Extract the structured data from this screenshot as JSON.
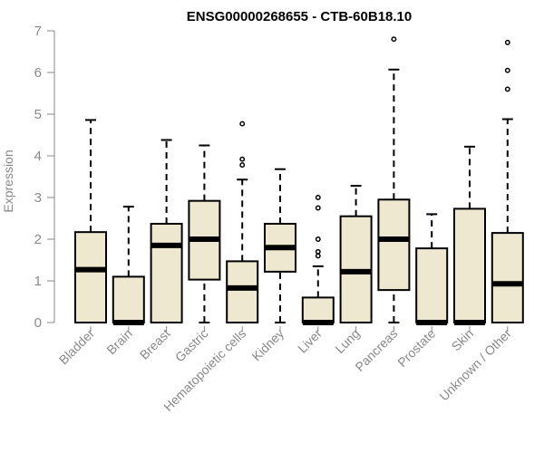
{
  "chart_data": {
    "type": "boxplot",
    "title": "ENSG00000268655 - CTB-60B18.10",
    "ylabel": "Expression",
    "xlabel": "",
    "ylim": [
      0,
      7
    ],
    "yticks": [
      0,
      1,
      2,
      3,
      4,
      5,
      6,
      7
    ],
    "grid": false,
    "box_fill": "#efe8d0",
    "box_stroke": "#000000",
    "categories": [
      "Bladder",
      "Brain",
      "Breast",
      "Gastric",
      "Hematopoietic cells",
      "Kidney",
      "Liver",
      "Lung",
      "Pancreas",
      "Prostate",
      "Skin",
      "Unknown / Other"
    ],
    "boxes": [
      {
        "category": "Bladder",
        "whisker_low": 0,
        "q1": 0,
        "median": 1.27,
        "q3": 2.17,
        "whisker_high": 4.86,
        "outliers": []
      },
      {
        "category": "Brain",
        "whisker_low": 0,
        "q1": 0,
        "median": 0,
        "q3": 1.1,
        "whisker_high": 2.78,
        "outliers": []
      },
      {
        "category": "Breast",
        "whisker_low": 0,
        "q1": 0,
        "median": 1.85,
        "q3": 2.37,
        "whisker_high": 4.38,
        "outliers": []
      },
      {
        "category": "Gastric",
        "whisker_low": 0,
        "q1": 1.03,
        "median": 2.0,
        "q3": 2.92,
        "whisker_high": 4.25,
        "outliers": []
      },
      {
        "category": "Hematopoietic cells",
        "whisker_low": 0,
        "q1": 0,
        "median": 0.83,
        "q3": 1.47,
        "whisker_high": 3.43,
        "outliers": [
          3.78,
          3.92,
          4.77
        ]
      },
      {
        "category": "Kidney",
        "whisker_low": 0,
        "q1": 1.22,
        "median": 1.8,
        "q3": 2.37,
        "whisker_high": 3.68,
        "outliers": []
      },
      {
        "category": "Liver",
        "whisker_low": 0,
        "q1": 0,
        "median": 0,
        "q3": 0.6,
        "whisker_high": 1.35,
        "outliers": [
          1.6,
          1.7,
          2.0,
          2.75,
          3.0
        ]
      },
      {
        "category": "Lung",
        "whisker_low": 0,
        "q1": 0,
        "median": 1.22,
        "q3": 2.55,
        "whisker_high": 3.28,
        "outliers": []
      },
      {
        "category": "Pancreas",
        "whisker_low": 0,
        "q1": 0.78,
        "median": 2.0,
        "q3": 2.95,
        "whisker_high": 6.07,
        "outliers": [
          6.8
        ]
      },
      {
        "category": "Prostate",
        "whisker_low": 0,
        "q1": 0,
        "median": 0,
        "q3": 1.78,
        "whisker_high": 2.6,
        "outliers": []
      },
      {
        "category": "Skin",
        "whisker_low": 0,
        "q1": 0,
        "median": 0,
        "q3": 2.73,
        "whisker_high": 4.22,
        "outliers": []
      },
      {
        "category": "Unknown / Other",
        "whisker_low": 0,
        "q1": 0,
        "median": 0.93,
        "q3": 2.15,
        "whisker_high": 4.88,
        "outliers": [
          5.6,
          6.05,
          6.72
        ]
      }
    ]
  }
}
